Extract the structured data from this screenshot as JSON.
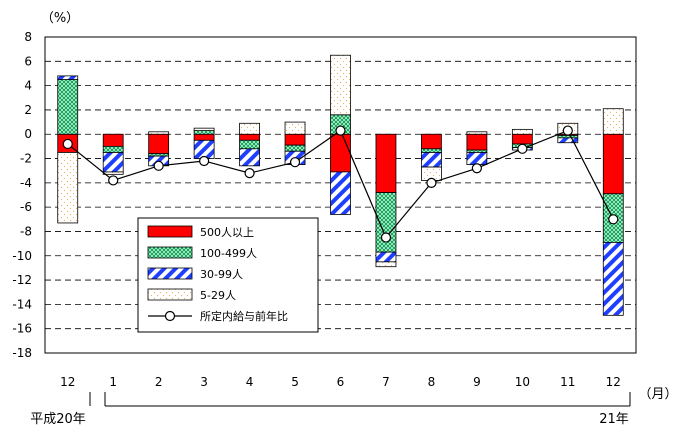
{
  "chart_data": {
    "type": "bar",
    "stacked": true,
    "unit_label": "（%）",
    "x_unit_label": "（月）",
    "categories": [
      "12",
      "1",
      "2",
      "3",
      "4",
      "5",
      "6",
      "7",
      "8",
      "9",
      "10",
      "11",
      "12"
    ],
    "era_labels": {
      "start": "平成20年",
      "end": "21年"
    },
    "ylim": [
      -18,
      8
    ],
    "yticks": [
      8,
      6,
      4,
      2,
      0,
      -2,
      -4,
      -6,
      -8,
      -10,
      -12,
      -14,
      -16,
      -18
    ],
    "grid": "dashed horizontal",
    "legend_position": "center-left",
    "series": [
      {
        "name": "500人以上",
        "color": "#ff0000",
        "pattern": "solid",
        "values": [
          -1.5,
          -1.0,
          -1.6,
          -0.5,
          -0.5,
          -0.9,
          -3.1,
          -4.8,
          -1.2,
          -1.3,
          -0.8,
          -0.1,
          -4.9
        ]
      },
      {
        "name": "100-499人",
        "color": "#00a550",
        "pattern": "crosshatch",
        "values": [
          4.5,
          -0.5,
          -0.2,
          0.3,
          -0.7,
          -0.5,
          1.6,
          -4.9,
          -0.3,
          -0.2,
          -0.3,
          -0.2,
          -4.0
        ]
      },
      {
        "name": "30-99人",
        "color": "#1f3fff",
        "pattern": "diagonal-stripes",
        "values": [
          0.3,
          -1.6,
          -0.8,
          -1.5,
          -1.4,
          -1.1,
          -3.5,
          -0.8,
          -1.2,
          -1.0,
          -0.2,
          -0.4,
          -6.0
        ]
      },
      {
        "name": "5-29人",
        "color": "#ffffff",
        "pattern": "dots",
        "values": [
          -5.8,
          -0.2,
          0.2,
          0.2,
          0.9,
          1.0,
          4.9,
          -0.4,
          -1.1,
          0.2,
          0.4,
          0.9,
          2.1
        ]
      }
    ],
    "line": {
      "name": "所定内給与前年比",
      "values": [
        -0.8,
        -3.8,
        -2.6,
        -2.2,
        -3.2,
        -2.3,
        0.3,
        -8.5,
        -4.0,
        -2.8,
        -1.2,
        0.3,
        -7.0
      ]
    }
  }
}
